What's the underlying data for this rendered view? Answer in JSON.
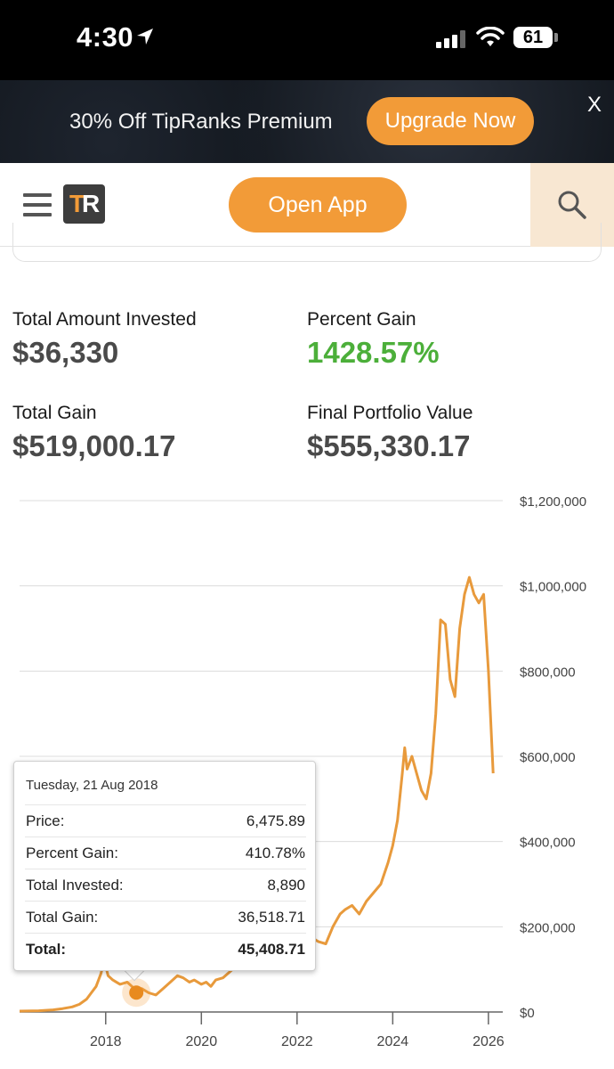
{
  "status_bar": {
    "time": "4:30",
    "battery": "61"
  },
  "promo": {
    "text": "30% Off TipRanks Premium",
    "button": "Upgrade Now",
    "close": "X"
  },
  "navbar": {
    "logo_t": "T",
    "logo_r": "R",
    "open_app": "Open App"
  },
  "stats": {
    "total_invested_label": "Total Amount Invested",
    "total_invested_value": "$36,330",
    "percent_gain_label": "Percent Gain",
    "percent_gain_value": "1428.57%",
    "total_gain_label": "Total Gain",
    "total_gain_value": "$519,000.17",
    "final_value_label": "Final Portfolio Value",
    "final_value_value": "$555,330.17"
  },
  "colors": {
    "accent": "#f29b38",
    "line": "#e89a3c",
    "gain_green": "#4caf3a"
  },
  "chart_data": {
    "type": "line",
    "x_ticks": [
      "2018",
      "2020",
      "2022",
      "2024",
      "2026"
    ],
    "y_ticks": [
      "$0",
      "$200,000",
      "$400,000",
      "$600,000",
      "$800,000",
      "$1,000,000",
      "$1,200,000"
    ],
    "ylim": [
      0,
      1200000
    ],
    "xlim": [
      2016.2,
      2026.3
    ],
    "grid": true,
    "series": [
      {
        "x": [
          2016.2,
          2016.6,
          2016.9,
          2017.1,
          2017.3,
          2017.45,
          2017.6,
          2017.7,
          2017.8,
          2017.9,
          2017.97,
          2018.05,
          2018.15,
          2018.3,
          2018.45,
          2018.55,
          2018.64,
          2018.75,
          2018.9,
          2019.05,
          2019.2,
          2019.35,
          2019.5,
          2019.62,
          2019.75,
          2019.85,
          2020.0,
          2020.1,
          2020.2,
          2020.3,
          2020.45,
          2020.6,
          2020.75,
          2020.9,
          2021.0,
          2021.1,
          2021.2,
          2021.3,
          2021.4,
          2021.5,
          2021.6,
          2021.7,
          2021.8,
          2021.9,
          2022.0,
          2022.1,
          2022.2,
          2022.3,
          2022.45,
          2022.6,
          2022.75,
          2022.9,
          2023.0,
          2023.15,
          2023.3,
          2023.45,
          2023.6,
          2023.75,
          2023.9,
          2024.0,
          2024.1,
          2024.2,
          2024.25,
          2024.3,
          2024.4,
          2024.5,
          2024.6,
          2024.7,
          2024.8,
          2024.9,
          2025.0,
          2025.1,
          2025.2,
          2025.3,
          2025.4,
          2025.5,
          2025.6,
          2025.7,
          2025.8,
          2025.9,
          2026.0,
          2026.1
        ],
        "y": [
          2000,
          3000,
          5000,
          8000,
          12000,
          18000,
          30000,
          45000,
          60000,
          90000,
          120000,
          85000,
          75000,
          65000,
          70000,
          60000,
          50000,
          55000,
          45000,
          40000,
          55000,
          70000,
          85000,
          80000,
          70000,
          75000,
          65000,
          70000,
          60000,
          75000,
          80000,
          95000,
          110000,
          130000,
          200000,
          320000,
          350000,
          300000,
          330000,
          250000,
          260000,
          230000,
          280000,
          180000,
          200000,
          170000,
          180000,
          175000,
          165000,
          160000,
          200000,
          230000,
          240000,
          250000,
          230000,
          260000,
          280000,
          300000,
          350000,
          390000,
          450000,
          560000,
          620000,
          570000,
          600000,
          560000,
          520000,
          500000,
          560000,
          700000,
          920000,
          910000,
          780000,
          740000,
          900000,
          980000,
          1020000,
          980000,
          960000,
          980000,
          800000,
          560000
        ]
      }
    ]
  },
  "tooltip": {
    "date": "Tuesday, 21 Aug 2018",
    "rows": [
      {
        "key": "Price:",
        "value": "6,475.89"
      },
      {
        "key": "Percent Gain:",
        "value": "410.78%"
      },
      {
        "key": "Total Invested:",
        "value": "8,890"
      },
      {
        "key": "Total Gain:",
        "value": "36,518.71"
      },
      {
        "key": "Total:",
        "value": "45,408.71"
      }
    ]
  }
}
